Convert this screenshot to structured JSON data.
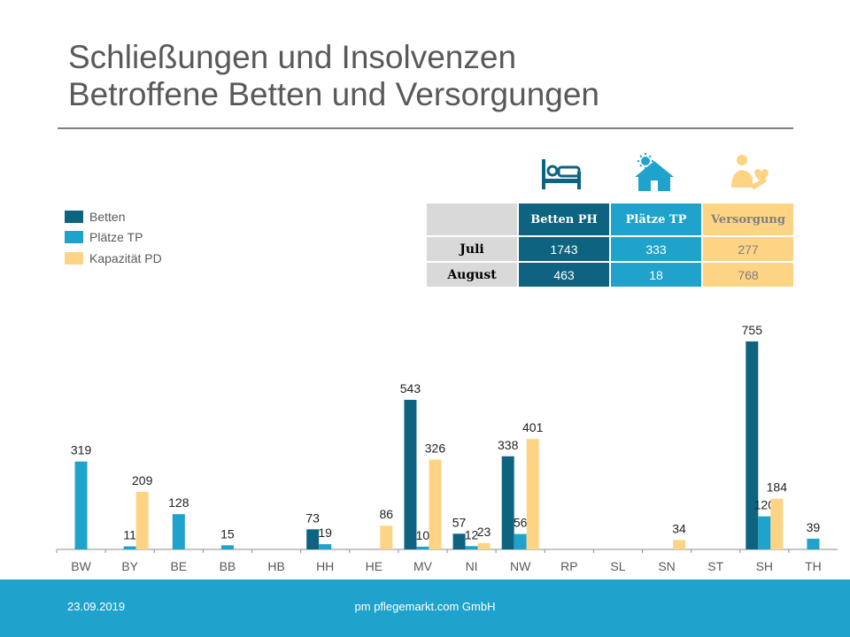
{
  "title": {
    "line1": "Schließungen und Insolvenzen",
    "line2": "Betroffene Betten und Versorgungen"
  },
  "icons": [
    "bed-icon",
    "house-sun-icon",
    "care-hand-icon"
  ],
  "colors": {
    "betten": "#0e6480",
    "plaetze": "#1fa3cc",
    "kapazitaet": "#fdd484",
    "header_gray": "#d9d9d9",
    "axis": "#8c8c8c"
  },
  "summary_table": {
    "headers": [
      "Betten PH",
      "Plätze TP",
      "Versorgung"
    ],
    "rows": [
      {
        "label": "Juli",
        "values": [
          "1743",
          "333",
          "277"
        ]
      },
      {
        "label": "August",
        "values": [
          "463",
          "18",
          "768"
        ]
      }
    ]
  },
  "footer": {
    "date": "23.09.2019",
    "company": "pm pflegemarkt.com GmbH"
  },
  "chart_data": {
    "type": "bar",
    "categories": [
      "BW",
      "BY",
      "BE",
      "BB",
      "HB",
      "HH",
      "HE",
      "MV",
      "NI",
      "NW",
      "RP",
      "SL",
      "SN",
      "ST",
      "SH",
      "TH"
    ],
    "series": [
      {
        "name": "Betten",
        "values": [
          null,
          null,
          null,
          null,
          null,
          73,
          null,
          543,
          57,
          338,
          null,
          null,
          null,
          null,
          755,
          null
        ]
      },
      {
        "name": "Plätze TP",
        "values": [
          319,
          11,
          128,
          15,
          null,
          19,
          null,
          10,
          12,
          56,
          null,
          null,
          null,
          null,
          120,
          39
        ]
      },
      {
        "name": "Kapazität PD",
        "values": [
          null,
          209,
          null,
          null,
          null,
          null,
          86,
          326,
          23,
          401,
          null,
          null,
          34,
          null,
          184,
          null
        ]
      }
    ],
    "legend_position": "top-left",
    "ylim": [
      0,
      800
    ],
    "grid": false
  }
}
